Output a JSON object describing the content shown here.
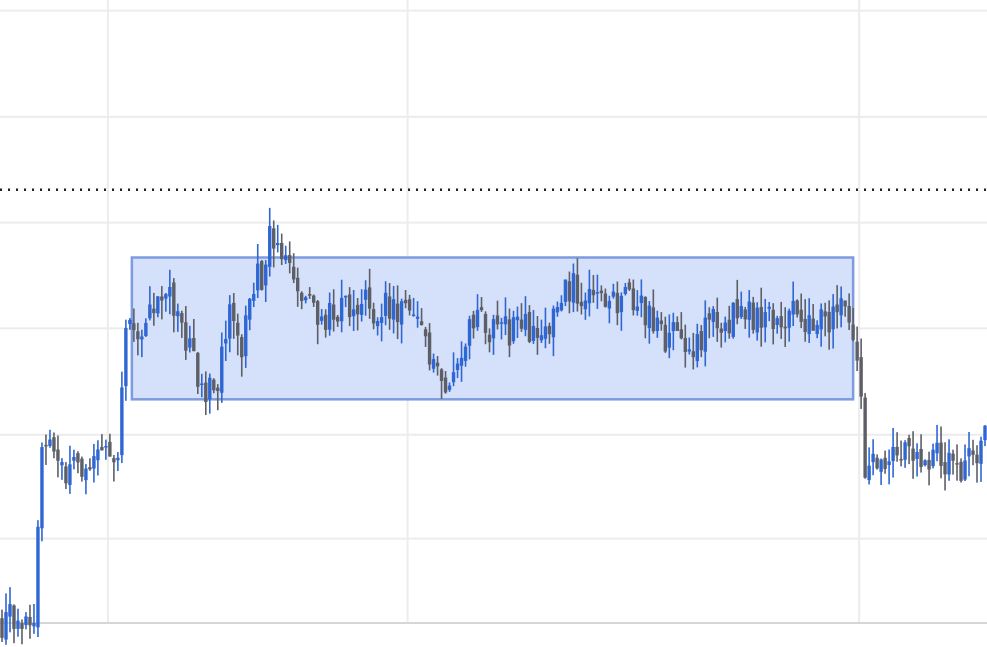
{
  "chart_data": {
    "type": "candlestick",
    "title": "",
    "xlabel": "",
    "ylabel": "",
    "grid": true,
    "legend": "none",
    "xlim": [
      0,
      247
    ],
    "ylim": [
      0,
      100
    ],
    "x_gridlines": [
      27,
      102,
      215
    ],
    "y_gridlines": [
      13.4,
      30.1,
      47.2,
      64.2,
      81.2,
      98.3
    ],
    "reference_line": {
      "y": 69.5,
      "style": "dotted"
    },
    "highlight_range": {
      "x_start": 33,
      "x_end": 213.5,
      "y_low": 35.8,
      "y_high": 58.6
    },
    "colors": {
      "up": "#2e66d4",
      "down": "#5c5f66",
      "grid": "#ececec",
      "axis": "#d6d6d6",
      "reference_line": "#222222",
      "highlight_fill": "#d3defa",
      "highlight_stroke": "#7c9be0"
    },
    "key_points": [
      [
        0,
        0.2
      ],
      [
        6,
        0.5
      ],
      [
        8,
        2.5
      ],
      [
        10,
        27
      ],
      [
        13,
        29
      ],
      [
        16,
        23
      ],
      [
        20,
        26
      ],
      [
        22,
        27
      ],
      [
        25,
        27
      ],
      [
        29,
        27
      ],
      [
        31,
        49
      ],
      [
        32,
        49
      ],
      [
        33,
        49
      ],
      [
        35,
        45
      ],
      [
        37,
        49
      ],
      [
        40,
        52
      ],
      [
        43,
        51
      ],
      [
        45,
        47
      ],
      [
        48,
        41
      ],
      [
        51,
        38
      ],
      [
        53,
        36
      ],
      [
        55,
        42
      ],
      [
        57,
        52
      ],
      [
        60,
        44
      ],
      [
        62,
        53
      ],
      [
        65,
        56
      ],
      [
        67,
        61
      ],
      [
        70,
        59
      ],
      [
        72,
        55
      ],
      [
        75,
        51
      ],
      [
        78,
        50
      ],
      [
        81,
        49
      ],
      [
        84,
        51
      ],
      [
        88,
        49
      ],
      [
        91,
        52
      ],
      [
        94,
        50
      ],
      [
        97,
        51
      ],
      [
        100,
        50
      ],
      [
        103,
        48
      ],
      [
        106,
        44
      ],
      [
        108,
        40
      ],
      [
        110,
        38
      ],
      [
        113,
        42
      ],
      [
        116,
        45
      ],
      [
        119,
        48
      ],
      [
        122,
        47
      ],
      [
        125,
        47
      ],
      [
        128,
        47
      ],
      [
        131,
        47
      ],
      [
        134,
        47
      ],
      [
        137,
        47
      ],
      [
        140,
        52
      ],
      [
        143,
        54
      ],
      [
        146,
        53
      ],
      [
        149,
        51
      ],
      [
        152,
        51
      ],
      [
        155,
        52
      ],
      [
        158,
        51
      ],
      [
        161,
        50
      ],
      [
        163,
        47
      ],
      [
        165,
        46
      ],
      [
        167,
        46
      ],
      [
        169,
        45
      ],
      [
        172,
        44
      ],
      [
        175,
        46
      ],
      [
        177,
        48
      ],
      [
        180,
        49
      ],
      [
        183,
        49
      ],
      [
        187,
        49
      ],
      [
        190,
        49
      ],
      [
        194,
        49
      ],
      [
        197,
        49
      ],
      [
        200,
        49
      ],
      [
        204,
        49
      ],
      [
        208,
        49
      ],
      [
        211,
        51
      ],
      [
        212,
        50
      ],
      [
        213,
        46
      ],
      [
        214,
        42
      ],
      [
        216,
        25
      ],
      [
        219,
        24
      ],
      [
        222,
        27
      ],
      [
        225,
        28
      ],
      [
        228,
        28
      ],
      [
        231,
        27
      ],
      [
        234,
        27
      ],
      [
        237,
        26
      ],
      [
        240,
        25
      ],
      [
        242,
        29
      ],
      [
        244,
        28
      ],
      [
        246,
        30
      ]
    ]
  }
}
